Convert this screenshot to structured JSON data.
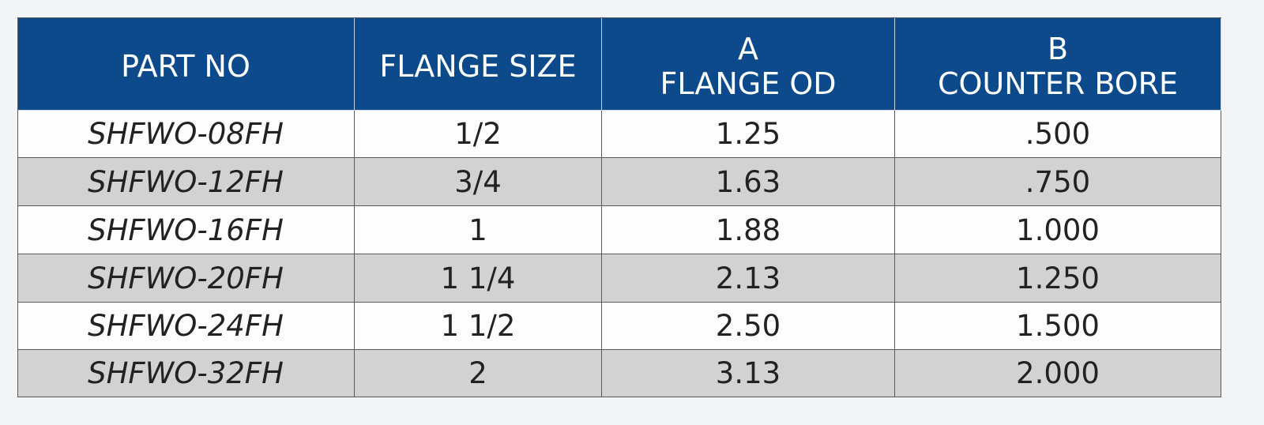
{
  "table": {
    "header": [
      [
        "PART NO"
      ],
      [
        "FLANGE SIZE"
      ],
      [
        "A",
        "FLANGE OD"
      ],
      [
        "B",
        "COUNTER BORE"
      ]
    ],
    "rows": [
      [
        "SHFWO-08FH",
        "1/2",
        "1.25",
        ".500"
      ],
      [
        "SHFWO-12FH",
        "3/4",
        "1.63",
        ".750"
      ],
      [
        "SHFWO-16FH",
        "1",
        "1.88",
        "1.000"
      ],
      [
        "SHFWO-20FH",
        "1 1/4",
        "2.13",
        "1.250"
      ],
      [
        "SHFWO-24FH",
        "1 1/2",
        "2.50",
        "1.500"
      ],
      [
        "SHFWO-32FH",
        "2",
        "3.13",
        "2.000"
      ]
    ]
  }
}
